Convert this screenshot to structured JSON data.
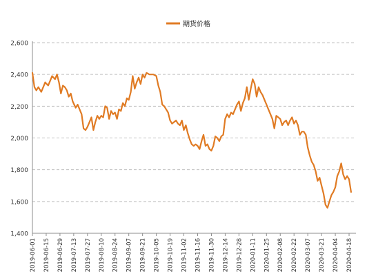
{
  "chart_data": {
    "type": "line",
    "legend": {
      "placement": "top-center"
    },
    "grid": {
      "y": true,
      "style": "dashed",
      "color": "#bfbfbf"
    },
    "ylim": [
      1400,
      2600
    ],
    "yticks": [
      "1,400",
      "1,600",
      "1,800",
      "2,000",
      "2,200",
      "2,400",
      "2,600"
    ],
    "xlim": [
      "2019-06-01",
      "2020-04-25"
    ],
    "xticks": [
      "2019-06-01",
      "2019-06-15",
      "2019-06-29",
      "2019-07-13",
      "2019-07-27",
      "2019-08-10",
      "2019-08-24",
      "2019-09-07",
      "2019-09-21",
      "2019-10-05",
      "2019-10-19",
      "2019-11-02",
      "2019-11-16",
      "2019-11-30",
      "2019-12-14",
      "2019-12-28",
      "2020-01-11",
      "2020-01-25",
      "2020-02-08",
      "2020-02-22",
      "2020-03-07",
      "2020-03-21",
      "2020-04-04",
      "2020-04-18"
    ],
    "series": [
      {
        "name": "期货价格",
        "color": "#e07b24",
        "points": [
          [
            "2019-06-01",
            2410
          ],
          [
            "2019-06-03",
            2320
          ],
          [
            "2019-06-05",
            2300
          ],
          [
            "2019-06-07",
            2320
          ],
          [
            "2019-06-10",
            2290
          ],
          [
            "2019-06-12",
            2320
          ],
          [
            "2019-06-14",
            2350
          ],
          [
            "2019-06-17",
            2330
          ],
          [
            "2019-06-19",
            2360
          ],
          [
            "2019-06-21",
            2390
          ],
          [
            "2019-06-24",
            2370
          ],
          [
            "2019-06-26",
            2400
          ],
          [
            "2019-06-28",
            2350
          ],
          [
            "2019-06-30",
            2280
          ],
          [
            "2019-07-02",
            2330
          ],
          [
            "2019-07-04",
            2320
          ],
          [
            "2019-07-06",
            2300
          ],
          [
            "2019-07-08",
            2260
          ],
          [
            "2019-07-10",
            2280
          ],
          [
            "2019-07-12",
            2230
          ],
          [
            "2019-07-15",
            2190
          ],
          [
            "2019-07-17",
            2210
          ],
          [
            "2019-07-19",
            2180
          ],
          [
            "2019-07-21",
            2150
          ],
          [
            "2019-07-23",
            2060
          ],
          [
            "2019-07-25",
            2050
          ],
          [
            "2019-07-27",
            2070
          ],
          [
            "2019-07-29",
            2100
          ],
          [
            "2019-07-31",
            2130
          ],
          [
            "2019-08-02",
            2050
          ],
          [
            "2019-08-04",
            2100
          ],
          [
            "2019-08-06",
            2140
          ],
          [
            "2019-08-08",
            2120
          ],
          [
            "2019-08-10",
            2140
          ],
          [
            "2019-08-12",
            2130
          ],
          [
            "2019-08-14",
            2200
          ],
          [
            "2019-08-16",
            2190
          ],
          [
            "2019-08-18",
            2120
          ],
          [
            "2019-08-20",
            2170
          ],
          [
            "2019-08-22",
            2150
          ],
          [
            "2019-08-24",
            2160
          ],
          [
            "2019-08-26",
            2120
          ],
          [
            "2019-08-28",
            2180
          ],
          [
            "2019-08-30",
            2170
          ],
          [
            "2019-09-01",
            2220
          ],
          [
            "2019-09-03",
            2200
          ],
          [
            "2019-09-05",
            2250
          ],
          [
            "2019-09-07",
            2240
          ],
          [
            "2019-09-09",
            2290
          ],
          [
            "2019-09-11",
            2390
          ],
          [
            "2019-09-13",
            2310
          ],
          [
            "2019-09-15",
            2350
          ],
          [
            "2019-09-17",
            2380
          ],
          [
            "2019-09-19",
            2340
          ],
          [
            "2019-09-21",
            2400
          ],
          [
            "2019-09-23",
            2380
          ],
          [
            "2019-09-25",
            2410
          ],
          [
            "2019-09-28",
            2400
          ],
          [
            "2019-10-02",
            2400
          ],
          [
            "2019-10-05",
            2390
          ],
          [
            "2019-10-07",
            2330
          ],
          [
            "2019-10-09",
            2290
          ],
          [
            "2019-10-11",
            2210
          ],
          [
            "2019-10-13",
            2200
          ],
          [
            "2019-10-15",
            2180
          ],
          [
            "2019-10-17",
            2160
          ],
          [
            "2019-10-19",
            2110
          ],
          [
            "2019-10-21",
            2090
          ],
          [
            "2019-10-23",
            2100
          ],
          [
            "2019-10-25",
            2110
          ],
          [
            "2019-10-27",
            2090
          ],
          [
            "2019-10-29",
            2080
          ],
          [
            "2019-10-31",
            2110
          ],
          [
            "2019-11-02",
            2050
          ],
          [
            "2019-11-04",
            2080
          ],
          [
            "2019-11-06",
            2030
          ],
          [
            "2019-11-08",
            1990
          ],
          [
            "2019-11-10",
            1960
          ],
          [
            "2019-11-12",
            1950
          ],
          [
            "2019-11-14",
            1960
          ],
          [
            "2019-11-16",
            1950
          ],
          [
            "2019-11-18",
            1930
          ],
          [
            "2019-11-20",
            1980
          ],
          [
            "2019-11-22",
            2020
          ],
          [
            "2019-11-24",
            1950
          ],
          [
            "2019-11-26",
            1960
          ],
          [
            "2019-11-28",
            1930
          ],
          [
            "2019-11-30",
            1920
          ],
          [
            "2019-12-02",
            1950
          ],
          [
            "2019-12-04",
            2010
          ],
          [
            "2019-12-06",
            2000
          ],
          [
            "2019-12-08",
            1980
          ],
          [
            "2019-12-10",
            2010
          ],
          [
            "2019-12-12",
            2020
          ],
          [
            "2019-12-14",
            2120
          ],
          [
            "2019-12-16",
            2150
          ],
          [
            "2019-12-18",
            2130
          ],
          [
            "2019-12-20",
            2160
          ],
          [
            "2019-12-22",
            2150
          ],
          [
            "2019-12-24",
            2180
          ],
          [
            "2019-12-26",
            2210
          ],
          [
            "2019-12-28",
            2230
          ],
          [
            "2019-12-30",
            2170
          ],
          [
            "2020-01-01",
            2220
          ],
          [
            "2020-01-03",
            2250
          ],
          [
            "2020-01-05",
            2320
          ],
          [
            "2020-01-07",
            2240
          ],
          [
            "2020-01-09",
            2310
          ],
          [
            "2020-01-11",
            2370
          ],
          [
            "2020-01-13",
            2340
          ],
          [
            "2020-01-15",
            2260
          ],
          [
            "2020-01-17",
            2320
          ],
          [
            "2020-01-19",
            2290
          ],
          [
            "2020-01-21",
            2270
          ],
          [
            "2020-01-23",
            2240
          ],
          [
            "2020-01-25",
            2210
          ],
          [
            "2020-01-27",
            2180
          ],
          [
            "2020-01-29",
            2150
          ],
          [
            "2020-01-31",
            2120
          ],
          [
            "2020-02-02",
            2060
          ],
          [
            "2020-02-04",
            2140
          ],
          [
            "2020-02-06",
            2130
          ],
          [
            "2020-02-08",
            2120
          ],
          [
            "2020-02-10",
            2080
          ],
          [
            "2020-02-12",
            2100
          ],
          [
            "2020-02-14",
            2110
          ],
          [
            "2020-02-16",
            2080
          ],
          [
            "2020-02-18",
            2110
          ],
          [
            "2020-02-20",
            2130
          ],
          [
            "2020-02-22",
            2090
          ],
          [
            "2020-02-24",
            2110
          ],
          [
            "2020-02-26",
            2080
          ],
          [
            "2020-02-28",
            2020
          ],
          [
            "2020-03-01",
            2040
          ],
          [
            "2020-03-03",
            2040
          ],
          [
            "2020-03-05",
            2020
          ],
          [
            "2020-03-07",
            1940
          ],
          [
            "2020-03-09",
            1890
          ],
          [
            "2020-03-11",
            1850
          ],
          [
            "2020-03-13",
            1830
          ],
          [
            "2020-03-15",
            1790
          ],
          [
            "2020-03-17",
            1730
          ],
          [
            "2020-03-19",
            1750
          ],
          [
            "2020-03-21",
            1700
          ],
          [
            "2020-03-23",
            1650
          ],
          [
            "2020-03-25",
            1580
          ],
          [
            "2020-03-27",
            1560
          ],
          [
            "2020-03-29",
            1600
          ],
          [
            "2020-03-31",
            1640
          ],
          [
            "2020-04-02",
            1660
          ],
          [
            "2020-04-04",
            1690
          ],
          [
            "2020-04-06",
            1760
          ],
          [
            "2020-04-08",
            1790
          ],
          [
            "2020-04-10",
            1840
          ],
          [
            "2020-04-12",
            1770
          ],
          [
            "2020-04-14",
            1740
          ],
          [
            "2020-04-16",
            1760
          ],
          [
            "2020-04-18",
            1740
          ],
          [
            "2020-04-20",
            1660
          ]
        ]
      }
    ]
  }
}
